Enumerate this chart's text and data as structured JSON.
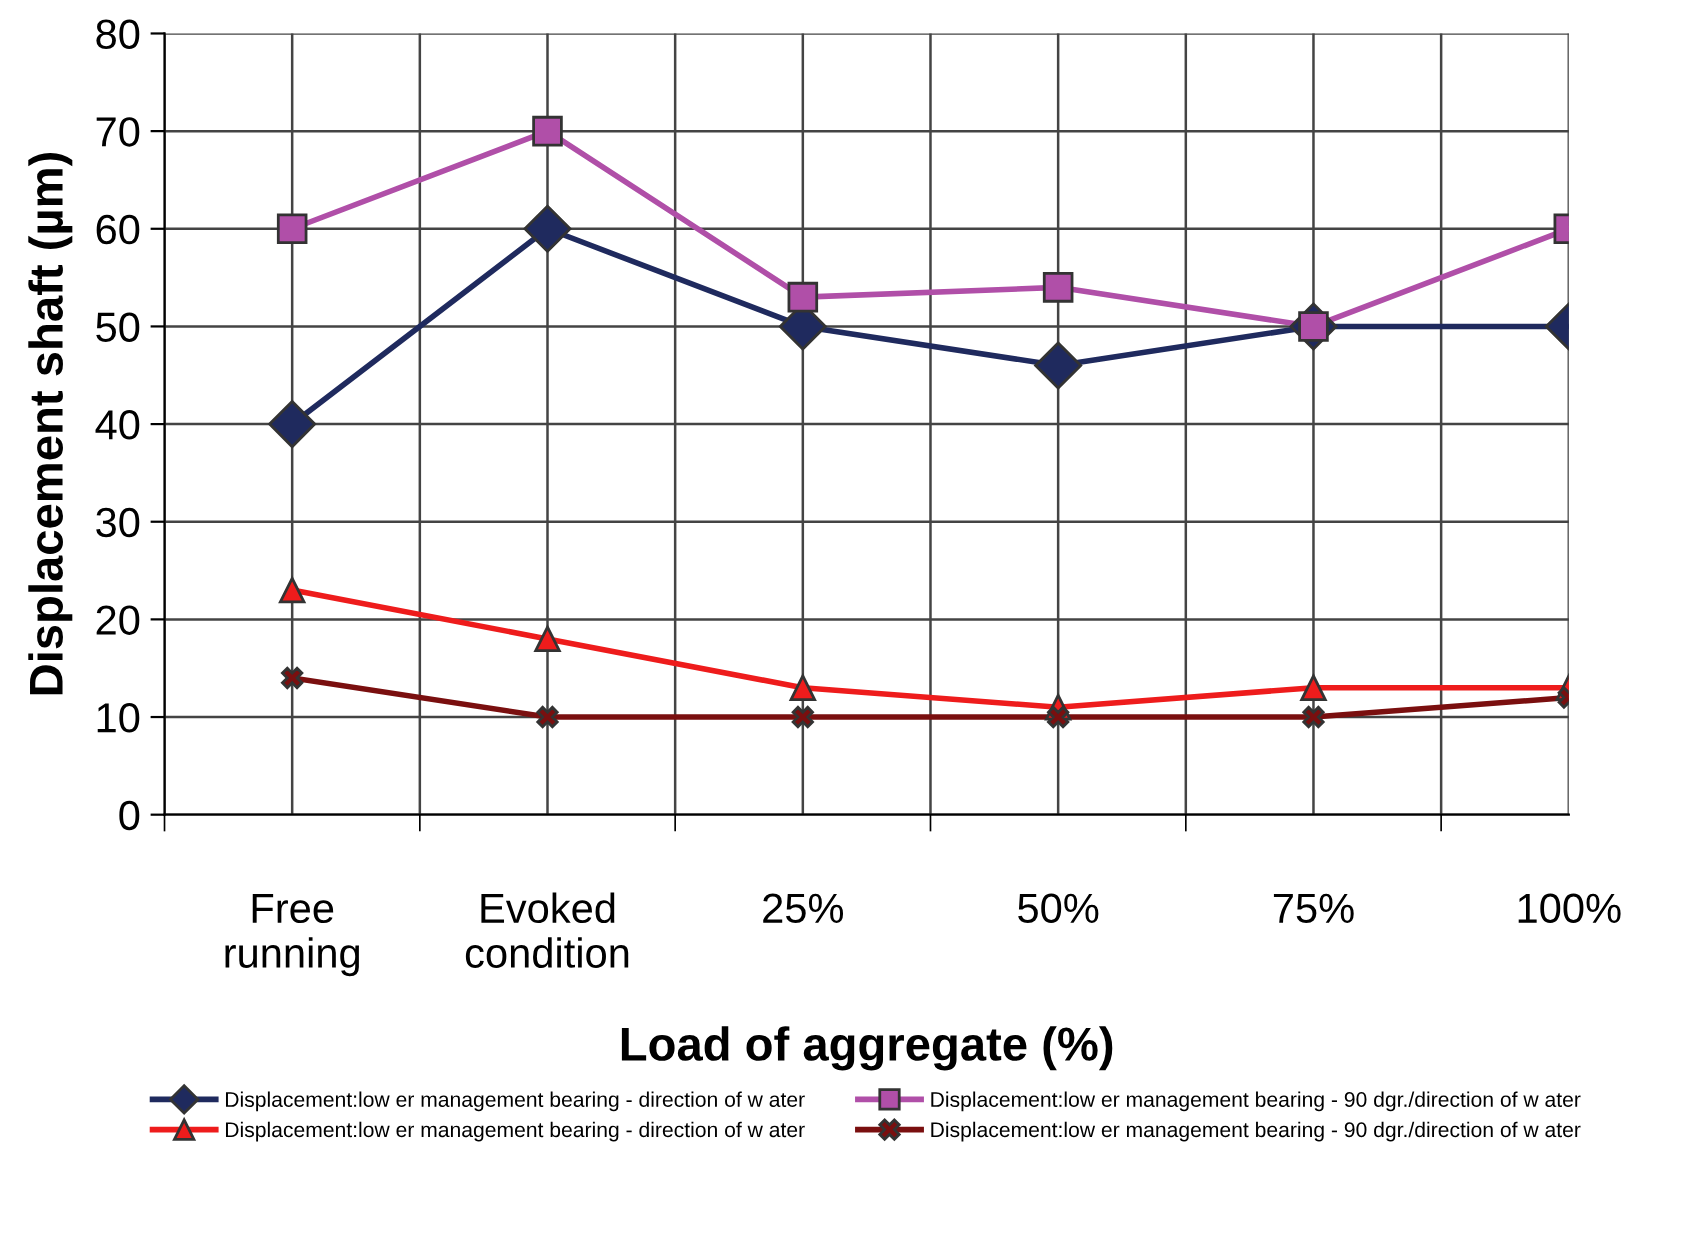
{
  "chart_data": {
    "type": "line",
    "xlabel": "Load of aggregate (%)",
    "ylabel": "Displacement shaft (µm)",
    "categories": [
      "Free\nrunning",
      "Evoked\ncondition",
      "25%",
      "50%",
      "75%",
      "100%"
    ],
    "ylim": [
      0,
      80
    ],
    "yticks": [
      0,
      10,
      20,
      30,
      40,
      50,
      60,
      70,
      80
    ],
    "grid": true,
    "legend": "bottom",
    "series": [
      {
        "name": "Displacement:low er management bearing - direction of w ater",
        "color": "#1f2a5e",
        "marker": "diamond",
        "values": [
          40,
          60,
          50,
          46,
          50,
          50
        ]
      },
      {
        "name": "Displacement:low er management bearing - 90 dgr./direction of w ater",
        "color": "#b04fa8",
        "marker": "square",
        "values": [
          60,
          70,
          53,
          54,
          50,
          60
        ]
      },
      {
        "name": "Displacement:low er management bearing - direction of w ater",
        "color": "#ee1c1c",
        "marker": "triangle",
        "values": [
          23,
          18,
          13,
          11,
          13,
          13
        ]
      },
      {
        "name": "Displacement:low er management bearing - 90 dgr./direction of w ater",
        "color": "#7a0f0f",
        "marker": "cross",
        "values": [
          14,
          10,
          10,
          10,
          10,
          12
        ]
      }
    ]
  }
}
